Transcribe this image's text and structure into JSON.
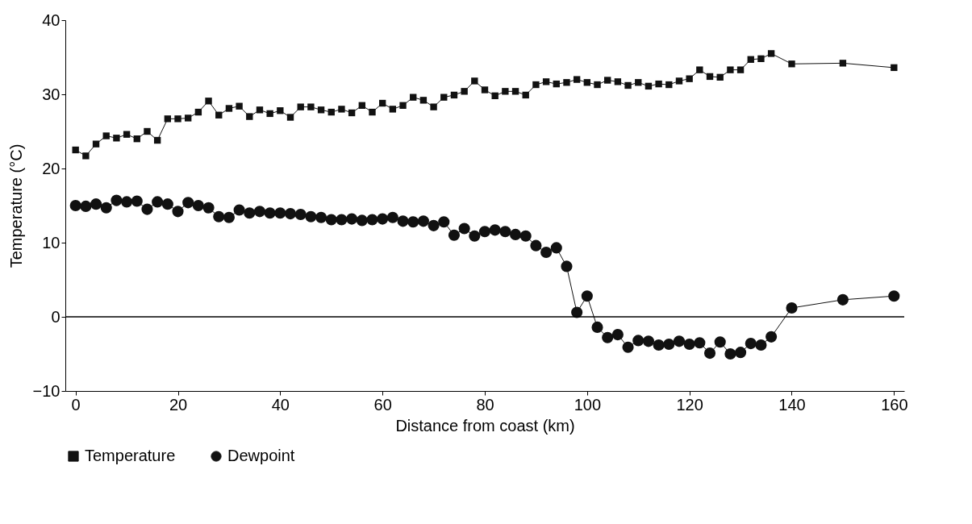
{
  "chart_data": {
    "type": "line",
    "xlabel": "Distance from coast (km)",
    "ylabel": "Temperature (°C)",
    "xlim": [
      -2,
      162
    ],
    "xticks": [
      0,
      20,
      40,
      60,
      80,
      100,
      120,
      140,
      160
    ],
    "ylim": [
      -10,
      40
    ],
    "yticks": [
      -10,
      0,
      10,
      20,
      30,
      40
    ],
    "grid": false,
    "legend": "bottom",
    "ref_lines": [
      {
        "axis": "y",
        "value": 0,
        "color": "#000000"
      }
    ],
    "x": [
      0,
      2,
      4,
      6,
      8,
      10,
      12,
      14,
      16,
      18,
      20,
      22,
      24,
      26,
      28,
      30,
      32,
      34,
      36,
      38,
      40,
      42,
      44,
      46,
      48,
      50,
      52,
      54,
      56,
      58,
      60,
      62,
      64,
      66,
      68,
      70,
      72,
      74,
      76,
      78,
      80,
      82,
      84,
      86,
      88,
      90,
      92,
      94,
      96,
      98,
      100,
      102,
      104,
      106,
      108,
      110,
      112,
      114,
      116,
      118,
      120,
      122,
      124,
      126,
      128,
      130,
      132,
      134,
      136,
      140,
      150,
      160
    ],
    "series": [
      {
        "name": "Temperature",
        "color": "#111111",
        "marker": "square",
        "values": [
          22.5,
          21.7,
          23.3,
          24.4,
          24.1,
          24.6,
          24.0,
          25.0,
          23.8,
          26.7,
          26.7,
          26.8,
          27.6,
          29.1,
          27.2,
          28.1,
          28.4,
          27.0,
          27.9,
          27.4,
          27.8,
          26.9,
          28.3,
          28.3,
          27.9,
          27.6,
          28.0,
          27.5,
          28.5,
          27.6,
          28.8,
          28.0,
          28.5,
          29.6,
          29.2,
          28.3,
          29.6,
          29.9,
          30.4,
          31.8,
          30.6,
          29.8,
          30.4,
          30.4,
          29.9,
          31.3,
          31.7,
          31.4,
          31.6,
          32.0,
          31.6,
          31.3,
          31.9,
          31.7,
          31.2,
          31.6,
          31.1,
          31.4,
          31.3,
          31.8,
          32.1,
          33.3,
          32.4,
          32.3,
          33.3,
          33.3,
          34.7,
          34.8,
          35.5,
          34.1,
          34.2,
          33.6
        ]
      },
      {
        "name": "Dewpoint",
        "color": "#111111",
        "marker": "circle",
        "values": [
          15.0,
          14.9,
          15.2,
          14.7,
          15.7,
          15.5,
          15.6,
          14.5,
          15.5,
          15.2,
          14.2,
          15.4,
          15.0,
          14.7,
          13.5,
          13.4,
          14.4,
          14.0,
          14.2,
          14.0,
          14.0,
          13.9,
          13.8,
          13.5,
          13.4,
          13.1,
          13.1,
          13.2,
          13.0,
          13.1,
          13.2,
          13.4,
          12.9,
          12.8,
          12.9,
          12.3,
          12.8,
          11.0,
          11.9,
          10.9,
          11.5,
          11.7,
          11.5,
          11.1,
          10.9,
          9.6,
          8.7,
          9.3,
          6.8,
          0.6,
          2.8,
          -1.4,
          -2.8,
          -2.4,
          -4.1,
          -3.2,
          -3.3,
          -3.8,
          -3.7,
          -3.3,
          -3.7,
          -3.5,
          -4.9,
          -3.4,
          -5.0,
          -4.8,
          -3.6,
          -3.8,
          -2.7,
          1.2,
          2.3,
          2.8
        ]
      }
    ]
  }
}
